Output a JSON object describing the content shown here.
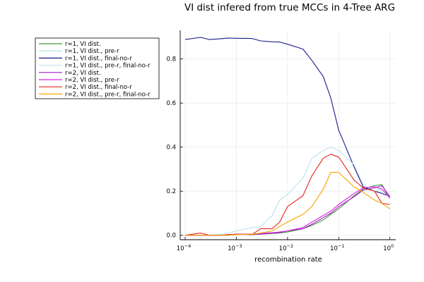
{
  "chart_data": {
    "type": "line",
    "title": "VI dist infered from true MCCs in 4-Tree ARG",
    "xlabel": "recombination rate",
    "ylabel": "",
    "xscale": "log",
    "xlim": [
      8e-05,
      1.3
    ],
    "ylim": [
      -0.02,
      0.93
    ],
    "x_ticks": [
      {
        "value": 0.0001,
        "base": "10",
        "exp": "−4"
      },
      {
        "value": 0.001,
        "base": "10",
        "exp": "−3"
      },
      {
        "value": 0.01,
        "base": "10",
        "exp": "−2"
      },
      {
        "value": 0.1,
        "base": "10",
        "exp": "−1"
      },
      {
        "value": 1,
        "base": "10",
        "exp": "0"
      }
    ],
    "y_ticks": [
      {
        "value": 0.0,
        "label": "0.0"
      },
      {
        "value": 0.2,
        "label": "0.2"
      },
      {
        "value": 0.4,
        "label": "0.4"
      },
      {
        "value": 0.6,
        "label": "0.6"
      },
      {
        "value": 0.8,
        "label": "0.8"
      }
    ],
    "grid": true,
    "legend_position": "top-left-outside",
    "x": [
      0.0001,
      0.0002,
      0.0003,
      0.0005,
      0.0007,
      0.001,
      0.002,
      0.003,
      0.005,
      0.007,
      0.01,
      0.02,
      0.03,
      0.05,
      0.07,
      0.1,
      0.2,
      0.3,
      0.5,
      0.7,
      1.0
    ],
    "series": [
      {
        "name": "r=1, VI dist.",
        "color": "#3a9a3a",
        "values": [
          0.0,
          0.0,
          0.0,
          0.0,
          0.003,
          0.005,
          0.003,
          0.005,
          0.008,
          0.01,
          0.015,
          0.03,
          0.045,
          0.07,
          0.095,
          0.12,
          0.18,
          0.21,
          0.225,
          0.23,
          0.165
        ]
      },
      {
        "name": "r=1, VI dist., pre-r",
        "color": "#a8dfe0",
        "values": [
          0.0,
          0.0,
          0.0,
          0.005,
          0.01,
          0.02,
          0.035,
          0.04,
          0.09,
          0.16,
          0.185,
          0.26,
          0.35,
          0.385,
          0.4,
          0.385,
          0.32,
          0.23,
          0.2,
          0.21,
          0.165
        ]
      },
      {
        "name": "r=1, VI dist., final-no-r",
        "color": "#1a1a8c",
        "values": [
          0.888,
          0.898,
          0.888,
          0.892,
          0.895,
          0.894,
          0.893,
          0.882,
          0.878,
          0.877,
          0.867,
          0.845,
          0.793,
          0.72,
          0.623,
          0.477,
          0.31,
          0.22,
          0.2,
          0.19,
          0.175
        ]
      },
      {
        "name": "r=1, VI dist., pre-r, final-no-r",
        "color": "#c8e4f2",
        "values": [
          0.0,
          0.0,
          0.0,
          0.005,
          0.01,
          0.02,
          0.035,
          0.04,
          0.09,
          0.16,
          0.185,
          0.26,
          0.35,
          0.385,
          0.4,
          0.385,
          0.32,
          0.23,
          0.2,
          0.21,
          0.165
        ]
      },
      {
        "name": "r=2, VI dist.",
        "color": "#a020c0",
        "values": [
          0.0,
          0.0,
          0.0,
          0.0,
          0.0,
          0.005,
          0.005,
          0.005,
          0.01,
          0.012,
          0.02,
          0.03,
          0.05,
          0.08,
          0.1,
          0.13,
          0.175,
          0.205,
          0.215,
          0.225,
          0.175
        ]
      },
      {
        "name": "r=2, VI dist., pre-r",
        "color": "#e020e0",
        "values": [
          0.0,
          0.0,
          0.0,
          0.0,
          0.0,
          0.005,
          0.005,
          0.008,
          0.012,
          0.015,
          0.02,
          0.035,
          0.06,
          0.09,
          0.11,
          0.14,
          0.19,
          0.215,
          0.22,
          0.21,
          0.17
        ]
      },
      {
        "name": "r=2, VI dist., final-no-r",
        "color": "#e8231a",
        "values": [
          0.0,
          0.01,
          0.0,
          0.0,
          0.003,
          0.005,
          0.003,
          0.03,
          0.03,
          0.06,
          0.13,
          0.18,
          0.27,
          0.35,
          0.368,
          0.355,
          0.25,
          0.215,
          0.2,
          0.145,
          0.14
        ]
      },
      {
        "name": "r=2, VI dist., pre-r, final-no-r",
        "color": "#f5a300",
        "values": [
          0.0,
          0.0,
          0.0,
          0.0,
          0.0,
          0.003,
          0.005,
          0.01,
          0.02,
          0.04,
          0.06,
          0.095,
          0.13,
          0.21,
          0.285,
          0.285,
          0.22,
          0.195,
          0.16,
          0.145,
          0.12
        ]
      }
    ]
  }
}
